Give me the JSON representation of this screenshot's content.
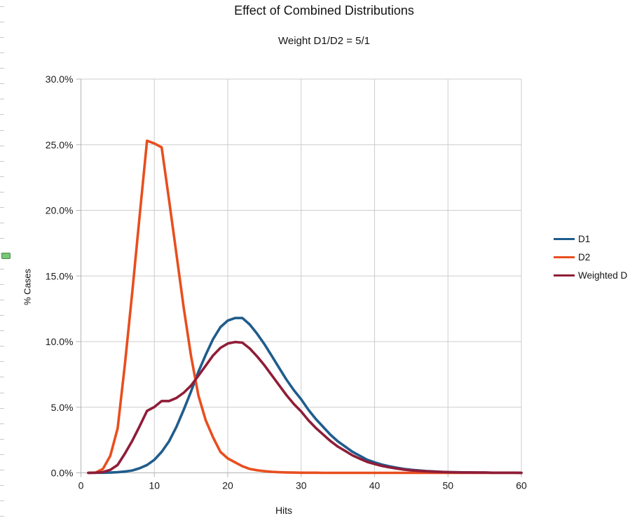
{
  "title": "Effect of Combined Distributions",
  "subtitle": "Weight D1/D2 = 5/1",
  "axes": {
    "x_label": "Hits",
    "y_label": "% Cases",
    "x_tick_labels": [
      "0",
      "10",
      "20",
      "30",
      "40",
      "50",
      "60"
    ],
    "y_tick_labels": [
      "30.0%",
      "25.0%",
      "20.0%",
      "15.0%",
      "10.0%",
      "5.0%",
      "0.0%"
    ]
  },
  "colors": {
    "gridline": "#cdcdcd",
    "axis": "#b3b3b3",
    "text": "#1a1a1a",
    "handle_fill": "#79c679",
    "handle_border": "#3c8c3c"
  },
  "chart_data": {
    "type": "line",
    "title": "Effect of Combined Distributions",
    "subtitle": "Weight D1/D2 = 5/1",
    "xlabel": "Hits",
    "ylabel": "% Cases",
    "xlim": [
      0,
      60
    ],
    "ylim": [
      0,
      30
    ],
    "x_tick_step": 10,
    "y_tick_step": 5,
    "y_unit": "%",
    "grid": true,
    "legend_position": "right",
    "x": [
      1,
      2,
      3,
      4,
      5,
      6,
      7,
      8,
      9,
      10,
      11,
      12,
      13,
      14,
      15,
      16,
      17,
      18,
      19,
      20,
      21,
      22,
      23,
      24,
      25,
      26,
      27,
      28,
      29,
      30,
      31,
      32,
      33,
      34,
      35,
      36,
      37,
      38,
      39,
      40,
      41,
      42,
      43,
      44,
      45,
      46,
      47,
      48,
      49,
      50,
      51,
      52,
      53,
      54,
      55,
      56,
      57,
      58,
      59,
      60
    ],
    "series": [
      {
        "name": "D1",
        "color": "#1f5c8c",
        "values": [
          0,
          0.01,
          0.01,
          0.02,
          0.05,
          0.1,
          0.18,
          0.35,
          0.6,
          1.0,
          1.6,
          2.4,
          3.5,
          4.8,
          6.2,
          7.7,
          9.0,
          10.2,
          11.1,
          11.6,
          11.8,
          11.8,
          11.3,
          10.6,
          9.8,
          8.9,
          8.0,
          7.1,
          6.3,
          5.6,
          4.8,
          4.1,
          3.5,
          2.9,
          2.4,
          2.0,
          1.6,
          1.3,
          1.0,
          0.8,
          0.63,
          0.5,
          0.39,
          0.3,
          0.23,
          0.18,
          0.14,
          0.11,
          0.08,
          0.06,
          0.05,
          0.04,
          0.03,
          0.02,
          0.02,
          0.01,
          0.01,
          0.01,
          0.01,
          0
        ]
      },
      {
        "name": "D2",
        "color": "#e84e1e",
        "values": [
          0,
          0.02,
          0.3,
          1.3,
          3.4,
          8.3,
          13.8,
          19.6,
          25.3,
          25.1,
          24.8,
          20.8,
          16.7,
          12.6,
          8.9,
          5.9,
          4.0,
          2.7,
          1.6,
          1.1,
          0.8,
          0.5,
          0.3,
          0.2,
          0.13,
          0.08,
          0.05,
          0.03,
          0.02,
          0.01,
          0.01,
          0.01,
          0,
          0,
          0,
          0,
          0,
          0,
          0,
          0,
          0,
          0,
          0,
          0,
          0,
          0,
          0,
          0,
          0,
          0,
          0,
          0,
          0,
          0,
          0,
          0,
          0,
          0,
          0,
          0
        ]
      },
      {
        "name": "Weighted D",
        "color": "#8f1d38",
        "values": [
          0,
          0.01,
          0.06,
          0.23,
          0.61,
          1.47,
          2.45,
          3.56,
          4.72,
          5.02,
          5.47,
          5.47,
          5.7,
          6.1,
          6.65,
          7.4,
          8.17,
          8.95,
          9.52,
          9.85,
          9.97,
          9.92,
          9.47,
          8.87,
          8.19,
          7.43,
          6.68,
          5.92,
          5.25,
          4.67,
          4.0,
          3.42,
          2.92,
          2.42,
          2.0,
          1.67,
          1.33,
          1.08,
          0.83,
          0.67,
          0.53,
          0.42,
          0.33,
          0.25,
          0.19,
          0.15,
          0.12,
          0.09,
          0.07,
          0.05,
          0.04,
          0.03,
          0.03,
          0.02,
          0.02,
          0.01,
          0.01,
          0.01,
          0.01,
          0
        ]
      }
    ]
  }
}
